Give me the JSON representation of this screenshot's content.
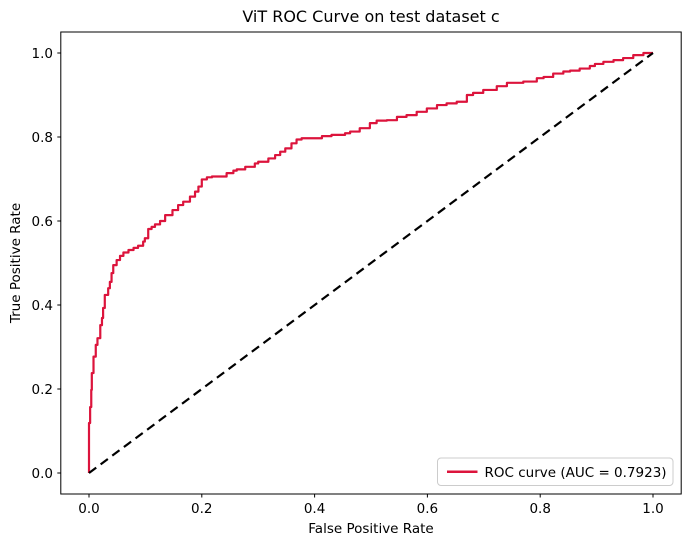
{
  "figure": {
    "background": "#ffffff",
    "spine_color": "#000000",
    "tick_color": "#000000"
  },
  "chart_data": {
    "type": "line",
    "title": "ViT ROC Curve on test dataset c",
    "xlabel": "False Positive Rate",
    "ylabel": "True Positive Rate",
    "xlim": [
      -0.05,
      1.05
    ],
    "ylim": [
      -0.05,
      1.05
    ],
    "grid": false,
    "auc": 0.7923,
    "xticks": {
      "values": [
        0.0,
        0.2,
        0.4,
        0.6,
        0.8,
        1.0
      ],
      "labels": [
        "0.0",
        "0.2",
        "0.4",
        "0.6",
        "0.8",
        "1.0"
      ]
    },
    "yticks": {
      "values": [
        0.0,
        0.2,
        0.4,
        0.6,
        0.8,
        1.0
      ],
      "labels": [
        "0.0",
        "0.2",
        "0.4",
        "0.6",
        "0.8",
        "1.0"
      ]
    },
    "legend": {
      "position": "lower right",
      "border_color": "#cccccc",
      "background": "#ffffff"
    },
    "series": [
      {
        "name": "ROC curve (AUC = 0.7923)",
        "draw": "step",
        "color": "#DC143C",
        "linewidth": 2.2,
        "dash": null,
        "points": [
          [
            0.0,
            0.0
          ],
          [
            0.0,
            0.08
          ],
          [
            0.002,
            0.119
          ],
          [
            0.004,
            0.157
          ],
          [
            0.005,
            0.198
          ],
          [
            0.008,
            0.238
          ],
          [
            0.012,
            0.277
          ],
          [
            0.015,
            0.305
          ],
          [
            0.02,
            0.321
          ],
          [
            0.023,
            0.352
          ],
          [
            0.025,
            0.369
          ],
          [
            0.028,
            0.393
          ],
          [
            0.034,
            0.424
          ],
          [
            0.037,
            0.44
          ],
          [
            0.04,
            0.455
          ],
          [
            0.043,
            0.476
          ],
          [
            0.049,
            0.495
          ],
          [
            0.055,
            0.507
          ],
          [
            0.061,
            0.517
          ],
          [
            0.07,
            0.525
          ],
          [
            0.079,
            0.531
          ],
          [
            0.087,
            0.536
          ],
          [
            0.096,
            0.541
          ],
          [
            0.099,
            0.551
          ],
          [
            0.105,
            0.559
          ],
          [
            0.111,
            0.581
          ],
          [
            0.117,
            0.586
          ],
          [
            0.126,
            0.592
          ],
          [
            0.135,
            0.6
          ],
          [
            0.148,
            0.614
          ],
          [
            0.158,
            0.626
          ],
          [
            0.167,
            0.638
          ],
          [
            0.179,
            0.646
          ],
          [
            0.188,
            0.658
          ],
          [
            0.194,
            0.67
          ],
          [
            0.2,
            0.682
          ],
          [
            0.209,
            0.699
          ],
          [
            0.218,
            0.704
          ],
          [
            0.244,
            0.706
          ],
          [
            0.256,
            0.714
          ],
          [
            0.262,
            0.72
          ],
          [
            0.277,
            0.723
          ],
          [
            0.294,
            0.729
          ],
          [
            0.3,
            0.737
          ],
          [
            0.318,
            0.741
          ],
          [
            0.33,
            0.749
          ],
          [
            0.339,
            0.757
          ],
          [
            0.348,
            0.765
          ],
          [
            0.359,
            0.773
          ],
          [
            0.368,
            0.785
          ],
          [
            0.377,
            0.794
          ],
          [
            0.389,
            0.797
          ],
          [
            0.413,
            0.797
          ],
          [
            0.43,
            0.802
          ],
          [
            0.454,
            0.805
          ],
          [
            0.463,
            0.809
          ],
          [
            0.48,
            0.813
          ],
          [
            0.498,
            0.821
          ],
          [
            0.51,
            0.833
          ],
          [
            0.528,
            0.839
          ],
          [
            0.546,
            0.84
          ],
          [
            0.563,
            0.848
          ],
          [
            0.581,
            0.852
          ],
          [
            0.599,
            0.86
          ],
          [
            0.617,
            0.868
          ],
          [
            0.634,
            0.876
          ],
          [
            0.652,
            0.88
          ],
          [
            0.67,
            0.884
          ],
          [
            0.681,
            0.9
          ],
          [
            0.699,
            0.905
          ],
          [
            0.723,
            0.912
          ],
          [
            0.741,
            0.921
          ],
          [
            0.77,
            0.929
          ],
          [
            0.794,
            0.932
          ],
          [
            0.806,
            0.94
          ],
          [
            0.823,
            0.943
          ],
          [
            0.841,
            0.951
          ],
          [
            0.853,
            0.956
          ],
          [
            0.87,
            0.958
          ],
          [
            0.888,
            0.963
          ],
          [
            0.897,
            0.969
          ],
          [
            0.912,
            0.974
          ],
          [
            0.93,
            0.979
          ],
          [
            0.947,
            0.983
          ],
          [
            0.965,
            0.988
          ],
          [
            0.983,
            0.995
          ],
          [
            1.0,
            1.0
          ]
        ]
      },
      {
        "name": "chance-diagonal",
        "draw": "line",
        "color": "#000000",
        "linewidth": 2.2,
        "dash": [
          9,
          5.5
        ],
        "points": [
          [
            0.0,
            0.0
          ],
          [
            1.0,
            1.0
          ]
        ]
      }
    ]
  }
}
